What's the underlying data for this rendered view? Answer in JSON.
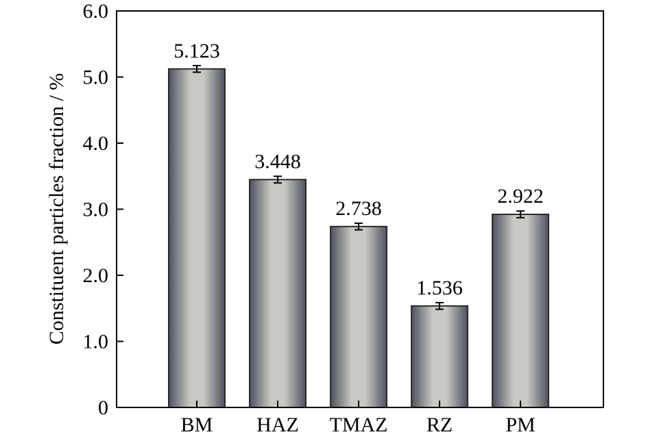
{
  "chart_data": {
    "type": "bar",
    "title": "",
    "xlabel": "",
    "ylabel": "Constituent particles fraction / %",
    "categories": [
      "BM",
      "HAZ",
      "TMAZ",
      "RZ",
      "PM"
    ],
    "values": [
      5.123,
      3.448,
      2.738,
      1.536,
      2.922
    ],
    "value_labels": [
      "5.123",
      "3.448",
      "2.738",
      "1.536",
      "2.922"
    ],
    "errors": [
      0.05,
      0.05,
      0.05,
      0.05,
      0.05
    ],
    "ylim": [
      0,
      6.0
    ],
    "yticks": [
      0,
      1.0,
      2.0,
      3.0,
      4.0,
      5.0,
      6.0
    ],
    "ytick_labels": [
      "0",
      "1.0",
      "2.0",
      "3.0",
      "4.0",
      "5.0",
      "6.0"
    ],
    "grid": false,
    "legend": "none",
    "colors": {
      "bar_edge": "#2a2a2a",
      "bar_dark": "#4e5060",
      "bar_light": "#c7cac2"
    }
  }
}
